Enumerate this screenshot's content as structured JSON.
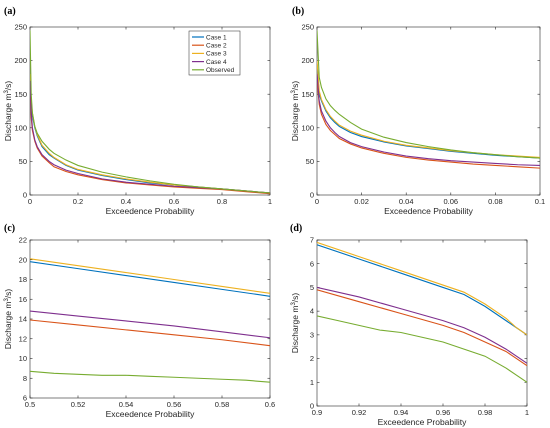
{
  "chart_data": [
    {
      "panel": "(a)",
      "type": "line",
      "xlabel": "Exceedence Probability",
      "ylabel": "Discharge m³/s)",
      "xlim": [
        0,
        1
      ],
      "ylim": [
        0,
        250
      ],
      "xticks": [
        0,
        0.2,
        0.4,
        0.6,
        0.8,
        1
      ],
      "xtick_labels": [
        "0",
        "0.2",
        "0.4",
        "0.6",
        "0.8",
        "1"
      ],
      "yticks": [
        0,
        50,
        100,
        150,
        200,
        250
      ],
      "ytick_labels": [
        "0",
        "50",
        "100",
        "150",
        "200",
        "250"
      ],
      "legend": [
        "Case 1",
        "Case 2",
        "Case 3",
        "Case 4",
        "Observed"
      ],
      "legend_position": "top-right",
      "series": [
        {
          "name": "Case 1",
          "color": "#0072BD",
          "x": [
            0,
            0.005,
            0.01,
            0.02,
            0.03,
            0.05,
            0.08,
            0.1,
            0.15,
            0.2,
            0.3,
            0.4,
            0.5,
            0.6,
            0.7,
            0.8,
            0.9,
            1.0
          ],
          "y": [
            175,
            135,
            118,
            100,
            88,
            72,
            60,
            55,
            44,
            37,
            29,
            23,
            18,
            15,
            12,
            9,
            6,
            3
          ]
        },
        {
          "name": "Case 2",
          "color": "#D95319",
          "x": [
            0,
            0.005,
            0.01,
            0.02,
            0.03,
            0.05,
            0.08,
            0.1,
            0.15,
            0.2,
            0.3,
            0.4,
            0.5,
            0.6,
            0.7,
            0.8,
            0.9,
            1.0
          ],
          "y": [
            165,
            115,
            96,
            80,
            70,
            58,
            48,
            42,
            35,
            30,
            23,
            18,
            15,
            12,
            10,
            8,
            5,
            2
          ]
        },
        {
          "name": "Case 3",
          "color": "#EDB120",
          "x": [
            0,
            0.005,
            0.01,
            0.02,
            0.03,
            0.05,
            0.08,
            0.1,
            0.15,
            0.2,
            0.3,
            0.4,
            0.5,
            0.6,
            0.7,
            0.8,
            0.9,
            1.0
          ],
          "y": [
            180,
            140,
            122,
            102,
            90,
            74,
            62,
            56,
            45,
            38,
            30,
            24,
            19,
            15,
            12,
            9,
            6,
            3
          ]
        },
        {
          "name": "Case 4",
          "color": "#7E2F8E",
          "x": [
            0,
            0.005,
            0.01,
            0.02,
            0.03,
            0.05,
            0.08,
            0.1,
            0.15,
            0.2,
            0.3,
            0.4,
            0.5,
            0.6,
            0.7,
            0.8,
            0.9,
            1.0
          ],
          "y": [
            170,
            125,
            100,
            82,
            72,
            60,
            50,
            45,
            37,
            32,
            24,
            19,
            16,
            13,
            11,
            9,
            6,
            3
          ]
        },
        {
          "name": "Observed",
          "color": "#77AC30",
          "x": [
            0,
            0.005,
            0.01,
            0.02,
            0.03,
            0.05,
            0.08,
            0.1,
            0.15,
            0.2,
            0.3,
            0.4,
            0.5,
            0.6,
            0.7,
            0.8,
            0.9,
            1.0
          ],
          "y": [
            245,
            150,
            122,
            102,
            92,
            80,
            68,
            62,
            52,
            44,
            34,
            27,
            21,
            16,
            12,
            9,
            6,
            3
          ]
        }
      ]
    },
    {
      "panel": "(b)",
      "type": "line",
      "xlabel": "Exceedence Probability",
      "ylabel": "Discharge m³/s)",
      "xlim": [
        0,
        0.1
      ],
      "ylim": [
        0,
        250
      ],
      "xticks": [
        0,
        0.02,
        0.04,
        0.06,
        0.08,
        0.1
      ],
      "xtick_labels": [
        "0",
        "0.02",
        "0.04",
        "0.06",
        "0.08",
        "0.1"
      ],
      "yticks": [
        0,
        50,
        100,
        150,
        200,
        250
      ],
      "ytick_labels": [
        "0",
        "50",
        "100",
        "150",
        "200",
        "250"
      ],
      "series": [
        {
          "name": "Case 1",
          "color": "#0072BD",
          "x": [
            0,
            0.001,
            0.002,
            0.004,
            0.006,
            0.008,
            0.01,
            0.015,
            0.02,
            0.03,
            0.04,
            0.05,
            0.06,
            0.07,
            0.08,
            0.09,
            0.1
          ],
          "y": [
            195,
            150,
            140,
            125,
            115,
            108,
            102,
            93,
            87,
            79,
            73,
            69,
            65,
            62,
            59,
            57,
            55
          ]
        },
        {
          "name": "Case 2",
          "color": "#D95319",
          "x": [
            0,
            0.001,
            0.002,
            0.004,
            0.006,
            0.008,
            0.01,
            0.015,
            0.02,
            0.03,
            0.04,
            0.05,
            0.06,
            0.07,
            0.08,
            0.09,
            0.1
          ],
          "y": [
            170,
            135,
            120,
            105,
            96,
            90,
            84,
            76,
            70,
            62,
            56,
            52,
            49,
            46,
            44,
            42,
            40
          ]
        },
        {
          "name": "Case 3",
          "color": "#EDB120",
          "x": [
            0,
            0.001,
            0.002,
            0.004,
            0.006,
            0.008,
            0.01,
            0.015,
            0.02,
            0.03,
            0.04,
            0.05,
            0.06,
            0.07,
            0.08,
            0.09,
            0.1
          ],
          "y": [
            200,
            155,
            142,
            127,
            117,
            110,
            104,
            95,
            89,
            80,
            74,
            70,
            66,
            63,
            60,
            58,
            56
          ]
        },
        {
          "name": "Case 4",
          "color": "#7E2F8E",
          "x": [
            0,
            0.001,
            0.002,
            0.004,
            0.006,
            0.008,
            0.01,
            0.015,
            0.02,
            0.03,
            0.04,
            0.05,
            0.06,
            0.07,
            0.08,
            0.09,
            0.1
          ],
          "y": [
            180,
            140,
            125,
            110,
            100,
            93,
            87,
            78,
            72,
            64,
            58,
            54,
            51,
            49,
            47,
            45,
            44
          ]
        },
        {
          "name": "Observed",
          "color": "#77AC30",
          "x": [
            0,
            0.001,
            0.002,
            0.004,
            0.006,
            0.008,
            0.01,
            0.015,
            0.02,
            0.03,
            0.04,
            0.05,
            0.06,
            0.07,
            0.08,
            0.09,
            0.1
          ],
          "y": [
            245,
            175,
            160,
            143,
            133,
            126,
            120,
            108,
            98,
            86,
            78,
            72,
            67,
            63,
            60,
            57,
            55
          ]
        }
      ]
    },
    {
      "panel": "(c)",
      "type": "line",
      "xlabel": "Exceedence Probability",
      "ylabel": "Discharge m³/s)",
      "xlim": [
        0.5,
        0.6
      ],
      "ylim": [
        6,
        22
      ],
      "xticks": [
        0.5,
        0.52,
        0.54,
        0.56,
        0.58,
        0.6
      ],
      "xtick_labels": [
        "0.5",
        "0.52",
        "0.54",
        "0.56",
        "0.58",
        "0.6"
      ],
      "yticks": [
        6,
        8,
        10,
        12,
        14,
        16,
        18,
        20,
        22
      ],
      "ytick_labels": [
        "6",
        "8",
        "10",
        "12",
        "14",
        "16",
        "18",
        "20",
        "22"
      ],
      "series": [
        {
          "name": "Case 1",
          "color": "#0072BD",
          "x": [
            0.5,
            0.52,
            0.54,
            0.56,
            0.58,
            0.6
          ],
          "y": [
            19.8,
            19.1,
            18.4,
            17.7,
            17.0,
            16.3
          ]
        },
        {
          "name": "Case 2",
          "color": "#D95319",
          "x": [
            0.5,
            0.52,
            0.54,
            0.56,
            0.58,
            0.6
          ],
          "y": [
            13.9,
            13.4,
            12.9,
            12.4,
            11.9,
            11.3
          ]
        },
        {
          "name": "Case 3",
          "color": "#EDB120",
          "x": [
            0.5,
            0.52,
            0.54,
            0.56,
            0.58,
            0.6
          ],
          "y": [
            20.1,
            19.4,
            18.7,
            18.0,
            17.3,
            16.6
          ]
        },
        {
          "name": "Case 4",
          "color": "#7E2F8E",
          "x": [
            0.5,
            0.52,
            0.54,
            0.56,
            0.58,
            0.6
          ],
          "y": [
            14.8,
            14.3,
            13.8,
            13.3,
            12.7,
            12.1
          ]
        },
        {
          "name": "Observed",
          "color": "#77AC30",
          "x": [
            0.5,
            0.51,
            0.52,
            0.53,
            0.54,
            0.55,
            0.56,
            0.57,
            0.58,
            0.59,
            0.6
          ],
          "y": [
            8.7,
            8.5,
            8.4,
            8.3,
            8.3,
            8.2,
            8.1,
            8.0,
            7.9,
            7.8,
            7.6
          ]
        }
      ]
    },
    {
      "panel": "(d)",
      "type": "line",
      "xlabel": "Exceedence Probability",
      "ylabel": "Discharge m³/s)",
      "xlim": [
        0.9,
        1.0
      ],
      "ylim": [
        0,
        7
      ],
      "xticks": [
        0.9,
        0.92,
        0.94,
        0.96,
        0.98,
        1.0
      ],
      "xtick_labels": [
        "0.9",
        "0.92",
        "0.94",
        "0.96",
        "0.98",
        "1"
      ],
      "yticks": [
        0,
        1,
        2,
        3,
        4,
        5,
        6,
        7
      ],
      "ytick_labels": [
        "0",
        "1",
        "2",
        "3",
        "4",
        "5",
        "6",
        "7"
      ],
      "series": [
        {
          "name": "Case 1",
          "color": "#0072BD",
          "x": [
            0.9,
            0.92,
            0.94,
            0.96,
            0.97,
            0.98,
            0.99,
            0.995,
            1.0
          ],
          "y": [
            6.8,
            6.2,
            5.6,
            5.0,
            4.7,
            4.2,
            3.6,
            3.3,
            3.0
          ]
        },
        {
          "name": "Case 2",
          "color": "#D95319",
          "x": [
            0.9,
            0.92,
            0.94,
            0.96,
            0.97,
            0.98,
            0.99,
            0.995,
            1.0
          ],
          "y": [
            4.9,
            4.4,
            3.9,
            3.4,
            3.1,
            2.7,
            2.3,
            2.0,
            1.7
          ]
        },
        {
          "name": "Case 3",
          "color": "#EDB120",
          "x": [
            0.9,
            0.92,
            0.94,
            0.96,
            0.97,
            0.98,
            0.99,
            0.995,
            1.0
          ],
          "y": [
            6.9,
            6.3,
            5.7,
            5.1,
            4.8,
            4.3,
            3.7,
            3.3,
            3.0
          ]
        },
        {
          "name": "Case 4",
          "color": "#7E2F8E",
          "x": [
            0.9,
            0.92,
            0.94,
            0.96,
            0.97,
            0.98,
            0.99,
            0.995,
            1.0
          ],
          "y": [
            5.0,
            4.6,
            4.1,
            3.6,
            3.3,
            2.9,
            2.4,
            2.1,
            1.8
          ]
        },
        {
          "name": "Observed",
          "color": "#77AC30",
          "x": [
            0.9,
            0.91,
            0.92,
            0.93,
            0.94,
            0.95,
            0.96,
            0.97,
            0.98,
            0.99,
            0.995,
            1.0
          ],
          "y": [
            3.8,
            3.6,
            3.4,
            3.2,
            3.1,
            2.9,
            2.7,
            2.4,
            2.1,
            1.6,
            1.3,
            1.0
          ]
        }
      ]
    }
  ]
}
